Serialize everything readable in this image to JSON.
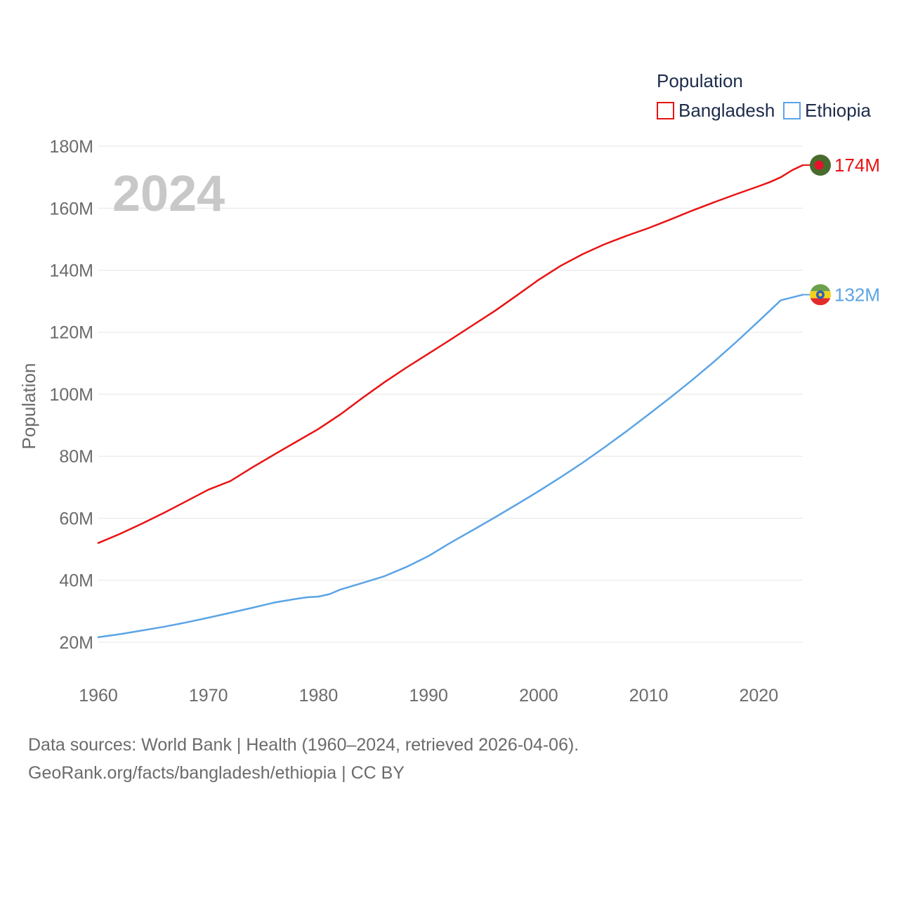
{
  "chart_data": {
    "type": "line",
    "year_label": "2024",
    "ylabel": "Population",
    "legend": {
      "title": "Population",
      "placement": "top-right"
    },
    "xlim": [
      1960,
      2024
    ],
    "ylim": [
      10,
      185
    ],
    "x_ticks": [
      1960,
      1970,
      1980,
      1990,
      2000,
      2010,
      2020
    ],
    "y_ticks": [
      20,
      40,
      60,
      80,
      100,
      120,
      140,
      160,
      180
    ],
    "y_tick_labels": [
      "20M",
      "40M",
      "60M",
      "80M",
      "100M",
      "120M",
      "140M",
      "160M",
      "180M"
    ],
    "series": [
      {
        "name": "Bangladesh",
        "color": "#e81313",
        "end_label": "174M",
        "flag_icon": "bangladesh-flag-icon",
        "x": [
          1960,
          1962,
          1964,
          1966,
          1968,
          1970,
          1972,
          1974,
          1976,
          1978,
          1980,
          1982,
          1984,
          1986,
          1988,
          1990,
          1992,
          1994,
          1996,
          1998,
          2000,
          2002,
          2004,
          2006,
          2008,
          2010,
          2012,
          2014,
          2016,
          2018,
          2020,
          2021,
          2022,
          2023,
          2024
        ],
        "values": [
          52.0,
          55.0,
          58.3,
          61.8,
          65.5,
          69.2,
          72.0,
          76.4,
          80.6,
          84.7,
          88.8,
          93.5,
          98.8,
          103.9,
          108.6,
          113.1,
          117.6,
          122.2,
          126.8,
          131.8,
          136.9,
          141.4,
          145.2,
          148.4,
          151.1,
          153.6,
          156.4,
          159.3,
          162.0,
          164.6,
          167.1,
          168.4,
          170.0,
          172.2,
          173.9
        ]
      },
      {
        "name": "Ethiopia",
        "color": "#5ba4e6",
        "end_label": "132M",
        "flag_icon": "ethiopia-flag-icon",
        "x": [
          1960,
          1962,
          1964,
          1966,
          1968,
          1970,
          1972,
          1974,
          1976,
          1978,
          1979,
          1980,
          1981,
          1982,
          1984,
          1986,
          1988,
          1990,
          1992,
          1994,
          1996,
          1998,
          2000,
          2002,
          2004,
          2006,
          2008,
          2010,
          2012,
          2014,
          2016,
          2018,
          2020,
          2022,
          2024
        ],
        "values": [
          21.6,
          22.6,
          23.8,
          25.0,
          26.4,
          27.9,
          29.5,
          31.1,
          32.8,
          34.0,
          34.5,
          34.7,
          35.5,
          37.0,
          39.1,
          41.3,
          44.3,
          47.8,
          52.1,
          56.1,
          60.2,
          64.4,
          68.7,
          73.2,
          77.9,
          82.9,
          88.1,
          93.5,
          99.0,
          104.7,
          110.7,
          117.0,
          123.6,
          130.3,
          132.1
        ]
      }
    ]
  },
  "footer": {
    "line1": "Data sources: World Bank | Health (1960–2024, retrieved 2026-04-06).",
    "line2": "GeoRank.org/facts/bangladesh/ethiopia | CC BY"
  }
}
